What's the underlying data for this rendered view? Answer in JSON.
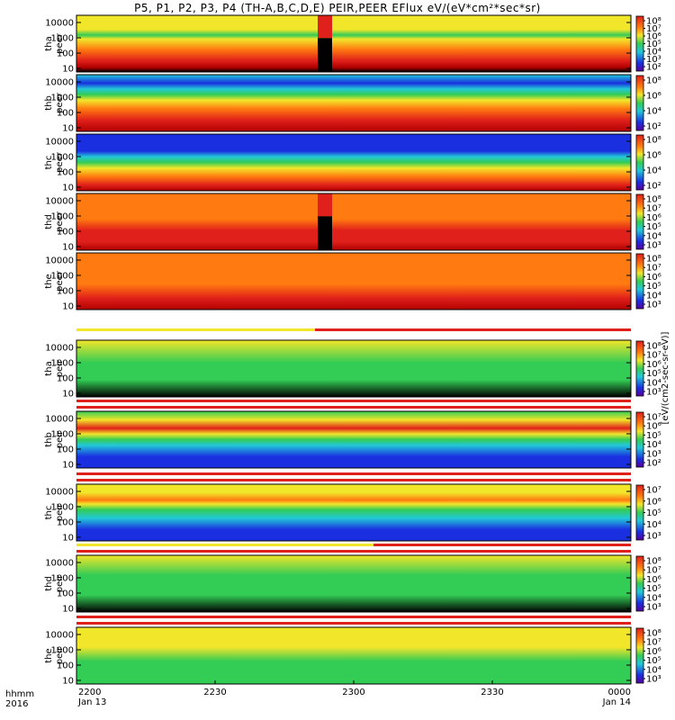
{
  "title": "P5, P1, P2, P3, P4 (TH-A,B,C,D,E) PEIR,PEER EFlux eV/(eV*cm²*sec*sr)",
  "colorbar_label": "[eV/(cm2-sec-sr-eV)]",
  "colors": {
    "black": "#000000",
    "darkred": "#b00000",
    "red": "#e0201a",
    "orange": "#ff7a10",
    "yellow": "#f2e62a",
    "green": "#33cc55",
    "cyan": "#22c8d8",
    "blue": "#1a30e0"
  },
  "xaxis": {
    "row1_label": "hhmm",
    "row2_label": "2016",
    "ticks": [
      {
        "value": "2200",
        "date": "Jan 13"
      },
      {
        "value": "2230",
        "date": ""
      },
      {
        "value": "2300",
        "date": ""
      },
      {
        "value": "2330",
        "date": ""
      },
      {
        "value": "0000",
        "date": "Jan 14"
      }
    ]
  },
  "chart_data": {
    "type": "heatmap",
    "x_range": [
      "2016-01-13 22:00",
      "2016-01-14 00:00"
    ],
    "y_scale": "log",
    "y_ticks": [
      "10",
      "100",
      "1000",
      "10000"
    ],
    "panels": [
      {
        "id": "tha-peer",
        "probe": "tha",
        "species": "peer",
        "cb_ticks": [
          "10⁸",
          "10⁷",
          "10⁶",
          "10⁵",
          "10⁴",
          "10³",
          "10²"
        ]
      },
      {
        "id": "thb-peer",
        "probe": "thb",
        "species": "peer",
        "cb_ticks": [
          "10⁸",
          "10⁶",
          "10⁴",
          "10²"
        ]
      },
      {
        "id": "thc-peer",
        "probe": "thc",
        "species": "peer",
        "cb_ticks": [
          "10⁸",
          "10⁶",
          "10⁴",
          "10²"
        ]
      },
      {
        "id": "thd-peer",
        "probe": "thd",
        "species": "peer",
        "cb_ticks": [
          "10⁸",
          "10⁷",
          "10⁶",
          "10⁵",
          "10⁴",
          "10³"
        ]
      },
      {
        "id": "the-peer",
        "probe": "the",
        "species": "peer",
        "cb_ticks": [
          "10⁸",
          "10⁷",
          "10⁶",
          "10⁵",
          "10⁴",
          "10³"
        ]
      },
      {
        "id": "tha-peir",
        "probe": "tha",
        "species": "peir",
        "cb_ticks": [
          "10⁸",
          "10⁷",
          "10⁶",
          "10⁵",
          "10⁴",
          "10³"
        ]
      },
      {
        "id": "thb-peir",
        "probe": "thb",
        "species": "peir",
        "cb_ticks": [
          "10⁷",
          "10⁶",
          "10⁵",
          "10⁴",
          "10³",
          "10²"
        ]
      },
      {
        "id": "thc-peir",
        "probe": "thc",
        "species": "peir",
        "cb_ticks": [
          "10⁷",
          "10⁶",
          "10⁵",
          "10⁴",
          "10³"
        ]
      },
      {
        "id": "thd-peir",
        "probe": "thd",
        "species": "peir",
        "cb_ticks": [
          "10⁸",
          "10⁷",
          "10⁶",
          "10⁵",
          "10⁴",
          "10³"
        ]
      },
      {
        "id": "the-peir",
        "probe": "the",
        "species": "peir",
        "cb_ticks": [
          "10⁸",
          "10⁷",
          "10⁶",
          "10⁵",
          "10⁴",
          "10³"
        ]
      }
    ]
  }
}
